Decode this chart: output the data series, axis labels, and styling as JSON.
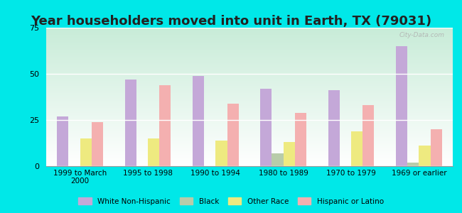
{
  "title": "Year householders moved into unit in Earth, TX (79031)",
  "categories": [
    "1999 to March\n2000",
    "1995 to 1998",
    "1990 to 1994",
    "1980 to 1989",
    "1970 to 1979",
    "1969 or earlier"
  ],
  "series": {
    "White Non-Hispanic": [
      27,
      47,
      49,
      42,
      41,
      65
    ],
    "Black": [
      0,
      0,
      0,
      7,
      0,
      2
    ],
    "Other Race": [
      15,
      15,
      14,
      13,
      19,
      11
    ],
    "Hispanic or Latino": [
      24,
      44,
      34,
      29,
      33,
      20
    ]
  },
  "colors": {
    "White Non-Hispanic": "#c4a8d8",
    "Black": "#b8ccaa",
    "Other Race": "#eeea80",
    "Hispanic or Latino": "#f4b0b0"
  },
  "ylim": [
    0,
    75
  ],
  "yticks": [
    0,
    25,
    50,
    75
  ],
  "background_outer": "#00e8e8",
  "gradient_top": "#c8ecd8",
  "gradient_bottom": "#ffffff",
  "title_fontsize": 13,
  "bar_width": 0.17,
  "watermark": "City-Data.com"
}
